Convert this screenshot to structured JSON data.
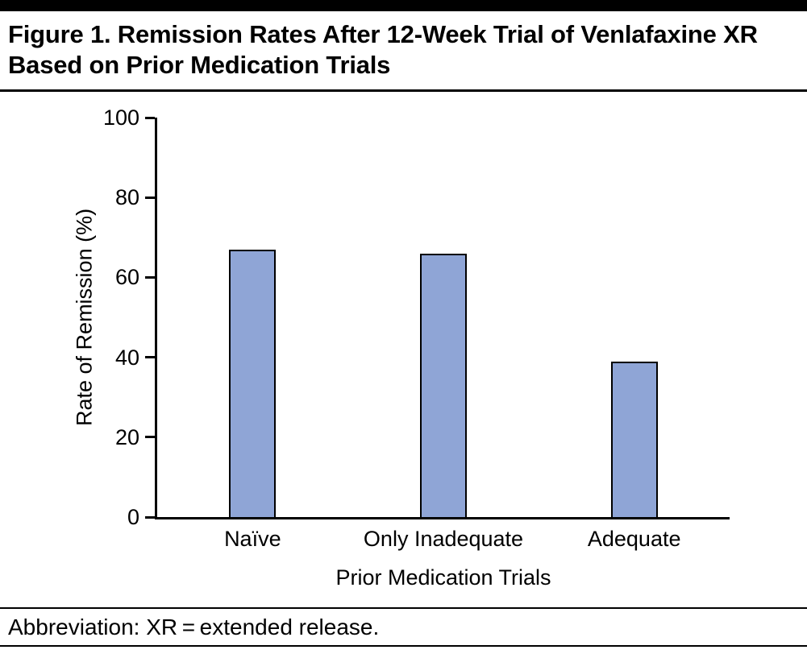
{
  "figure": {
    "title": "Figure 1. Remission Rates After 12-Week Trial of Venlafaxine XR Based on Prior Medication Trials",
    "footnote": "Abbreviation: XR = extended release."
  },
  "chart_data": {
    "type": "bar",
    "title": "Figure 1. Remission Rates After 12-Week Trial of Venlafaxine XR Based on Prior Medication Trials",
    "categories": [
      "Naïve",
      "Only Inadequate",
      "Adequate"
    ],
    "values": [
      67,
      66,
      39
    ],
    "xlabel": "Prior Medication Trials",
    "ylabel": "Rate of Remission (%)",
    "ylim": [
      0,
      100
    ],
    "yticks": [
      0,
      20,
      40,
      60,
      80,
      100
    ],
    "grid": false,
    "legend": false,
    "bar_color": "#8FA5D6",
    "bar_border_color": "#000000",
    "axis_color": "#000000"
  }
}
